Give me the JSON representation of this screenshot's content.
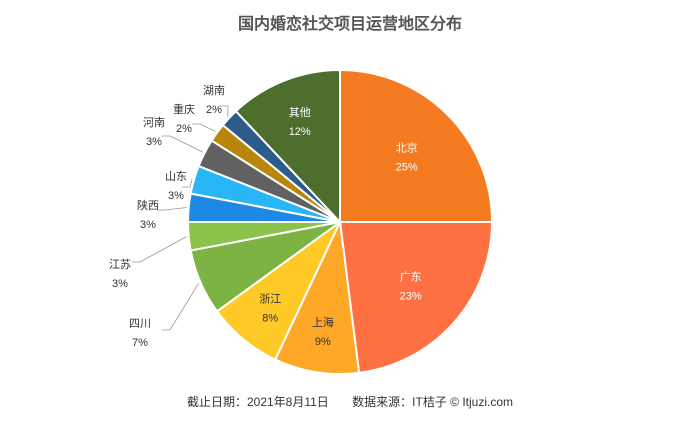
{
  "chart_data": {
    "type": "pie",
    "title": "国内婚恋社交项目运营地区分布",
    "slices": [
      {
        "label": "北京",
        "value": 25,
        "value_label": "25%",
        "color": "#F47B20"
      },
      {
        "label": "广东",
        "value": 23,
        "value_label": "23%",
        "color": "#FF7043"
      },
      {
        "label": "上海",
        "value": 9,
        "value_label": "9%",
        "color": "#FFA726"
      },
      {
        "label": "浙江",
        "value": 8,
        "value_label": "8%",
        "color": "#FFCA28"
      },
      {
        "label": "四川",
        "value": 7,
        "value_label": "7%",
        "color": "#7CB342"
      },
      {
        "label": "江苏",
        "value": 3,
        "value_label": "3%",
        "color": "#8BC34A"
      },
      {
        "label": "陕西",
        "value": 3,
        "value_label": "3%",
        "color": "#1E88E5"
      },
      {
        "label": "山东",
        "value": 3,
        "value_label": "3%",
        "color": "#29B6F6"
      },
      {
        "label": "河南",
        "value": 3,
        "value_label": "3%",
        "color": "#616161"
      },
      {
        "label": "重庆",
        "value": 2,
        "value_label": "2%",
        "color": "#B8860B"
      },
      {
        "label": "湖南",
        "value": 2,
        "value_label": "2%",
        "color": "#2B5C8A"
      },
      {
        "label": "其他",
        "value": 12,
        "value_label": "12%",
        "color": "#4E6E2E"
      }
    ]
  },
  "footer": {
    "date_text": "截止日期：2021年8月11日",
    "source_text": "数据来源：IT桔子 © Itjuzi.com"
  }
}
